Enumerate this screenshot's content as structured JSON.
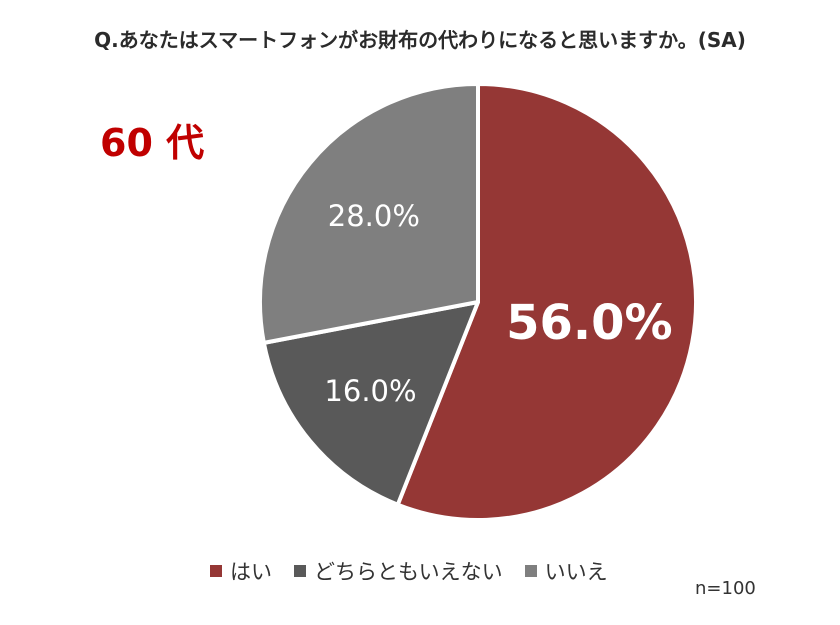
{
  "title": "Q.あなたはスマートフォンがお財布の代わりになると思いますか。(SA)",
  "age_label": "60 代",
  "n_label": "n=100",
  "chart_data": {
    "type": "pie",
    "slices": [
      {
        "label": "はい",
        "value": 56.0,
        "display": "56.0%",
        "color": "#953735"
      },
      {
        "label": "どちらともいえない",
        "value": 16.0,
        "display": "16.0%",
        "color": "#595959"
      },
      {
        "label": "いいえ",
        "value": 28.0,
        "display": "28.0%",
        "color": "#7f7f7f"
      }
    ],
    "legend_position": "bottom"
  }
}
